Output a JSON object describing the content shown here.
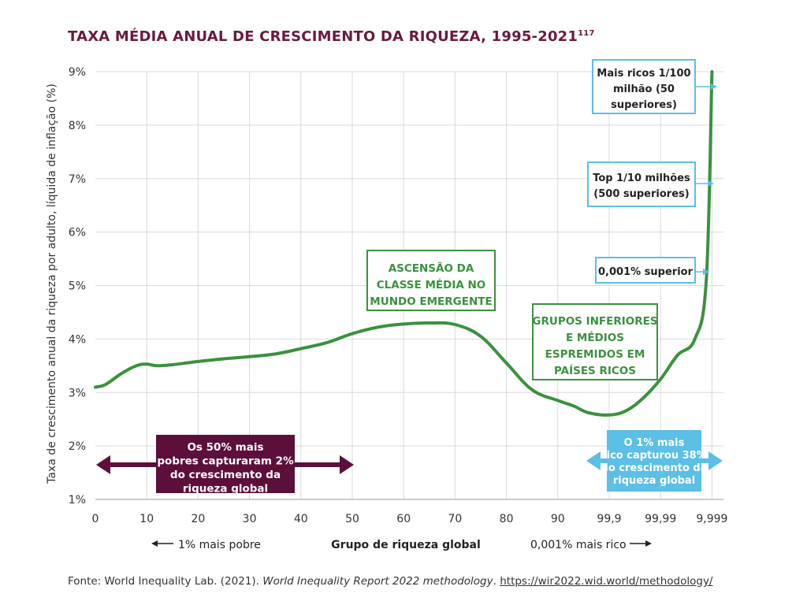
{
  "title": "TAXA MÉDIA ANUAL DE CRESCIMENTO DA RIQUEZA, 1995-2021",
  "title_note": "117",
  "chart_data": {
    "type": "line",
    "ylabel": "Taxa de crescimento anual da riqueza por adulto, líquida de inflação (%)",
    "xlabel": "Grupo de riqueza global",
    "x_tick_labels": [
      "0",
      "10",
      "20",
      "30",
      "40",
      "50",
      "60",
      "70",
      "80",
      "90",
      "99,9",
      "99,99",
      "9,999"
    ],
    "y_tick_labels": [
      "1%",
      "2%",
      "3%",
      "4%",
      "5%",
      "6%",
      "7%",
      "8%",
      "9%"
    ],
    "ylim": [
      1,
      9
    ],
    "grid": true,
    "line_color": "#3a913f",
    "series": [
      {
        "x": [
          "0",
          "2",
          "5",
          "8",
          "10",
          "12",
          "15",
          "20",
          "25",
          "30",
          "35",
          "40",
          "45",
          "50",
          "55",
          "60",
          "65",
          "70",
          "75",
          "80",
          "85",
          "90",
          "93",
          "96",
          "99,9",
          "99,93",
          "99,96",
          "99,99",
          "99,993",
          "99,996",
          "99,998",
          "9,999"
        ],
        "values": [
          3.1,
          3.15,
          3.35,
          3.5,
          3.53,
          3.5,
          3.52,
          3.58,
          3.63,
          3.67,
          3.72,
          3.82,
          3.93,
          4.1,
          4.22,
          4.28,
          4.3,
          4.27,
          4.05,
          3.55,
          3.05,
          2.85,
          2.75,
          2.62,
          2.58,
          2.66,
          2.9,
          3.25,
          3.7,
          4.0,
          5.1,
          9.0
        ]
      }
    ],
    "nav_left": "1% mais pobre",
    "nav_right": "0,001% mais rico",
    "annotations": {
      "top_1_100m": "Mais ricos 1/100 milhão (50 superiores)",
      "top_1_10m": "Top 1/10 milhões (500 superiores)",
      "top_0001": "0,001% superior",
      "middle_class": "ASCENSÃO DA CLASSE MÉDIA NO MUNDO EMERGENTE",
      "squeezed": "GRUPOS INFERIORES E MÉDIOS ESPREMIDOS EM PAÍSES RICOS",
      "bottom50": "Os 50% mais pobres capturaram 2% do crescimento da riqueza global",
      "top1": "O 1% mais rico capturou 38% do crescimento da riqueza global"
    }
  },
  "colors": {
    "title": "#6b1a3e",
    "line": "#3a913f",
    "bottom50_box": "#5c0f3a",
    "top1_box": "#5bbfe6",
    "top_label_border": "#5bbfe6"
  },
  "source": {
    "prefix": "Fonte: World Inequality Lab. (2021). ",
    "italic": "World Inequality Report 2022 methodology",
    "mid": ". ",
    "link": "https://wir2022.wid.world/methodology/"
  }
}
